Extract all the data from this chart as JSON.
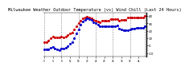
{
  "title": "Milwaukee Weather Outdoor Temperature (vs) Wind Chill (Last 24 Hours)",
  "title_fontsize": 3.8,
  "bg_color": "#ffffff",
  "plot_bg": "#ffffff",
  "grid_color": "#888888",
  "temp_color": "#cc0000",
  "windchill_color": "#0000cc",
  "ylim": [
    -15,
    45
  ],
  "yticks": [
    -10,
    0,
    10,
    20,
    30,
    40
  ],
  "ytick_labels": [
    "-10",
    "0",
    "10",
    "20",
    "30",
    "40"
  ],
  "temp_data": [
    5,
    5,
    7,
    10,
    12,
    11,
    11,
    11,
    12,
    11,
    12,
    14,
    16,
    18,
    22,
    26,
    30,
    34,
    37,
    38,
    39,
    38,
    37,
    35,
    34,
    33,
    32,
    34,
    34,
    34,
    34,
    36,
    36,
    36,
    36,
    34,
    35,
    35,
    35,
    38,
    38,
    38,
    38,
    38,
    38,
    38,
    38,
    40
  ],
  "windchill_data": [
    -5,
    -5,
    -5,
    -3,
    -2,
    -4,
    -5,
    -6,
    -4,
    -4,
    -3,
    -1,
    2,
    5,
    10,
    16,
    22,
    28,
    33,
    35,
    37,
    36,
    35,
    32,
    30,
    28,
    26,
    26,
    26,
    26,
    26,
    26,
    26,
    26,
    27,
    23,
    22,
    21,
    21,
    21,
    22,
    23,
    23,
    24,
    24,
    24,
    24,
    26
  ],
  "n_points": 48,
  "vgrid_positions": [
    0,
    8,
    16,
    24,
    32,
    40,
    47
  ],
  "marker_size": 1.2,
  "line_width": 0.6
}
